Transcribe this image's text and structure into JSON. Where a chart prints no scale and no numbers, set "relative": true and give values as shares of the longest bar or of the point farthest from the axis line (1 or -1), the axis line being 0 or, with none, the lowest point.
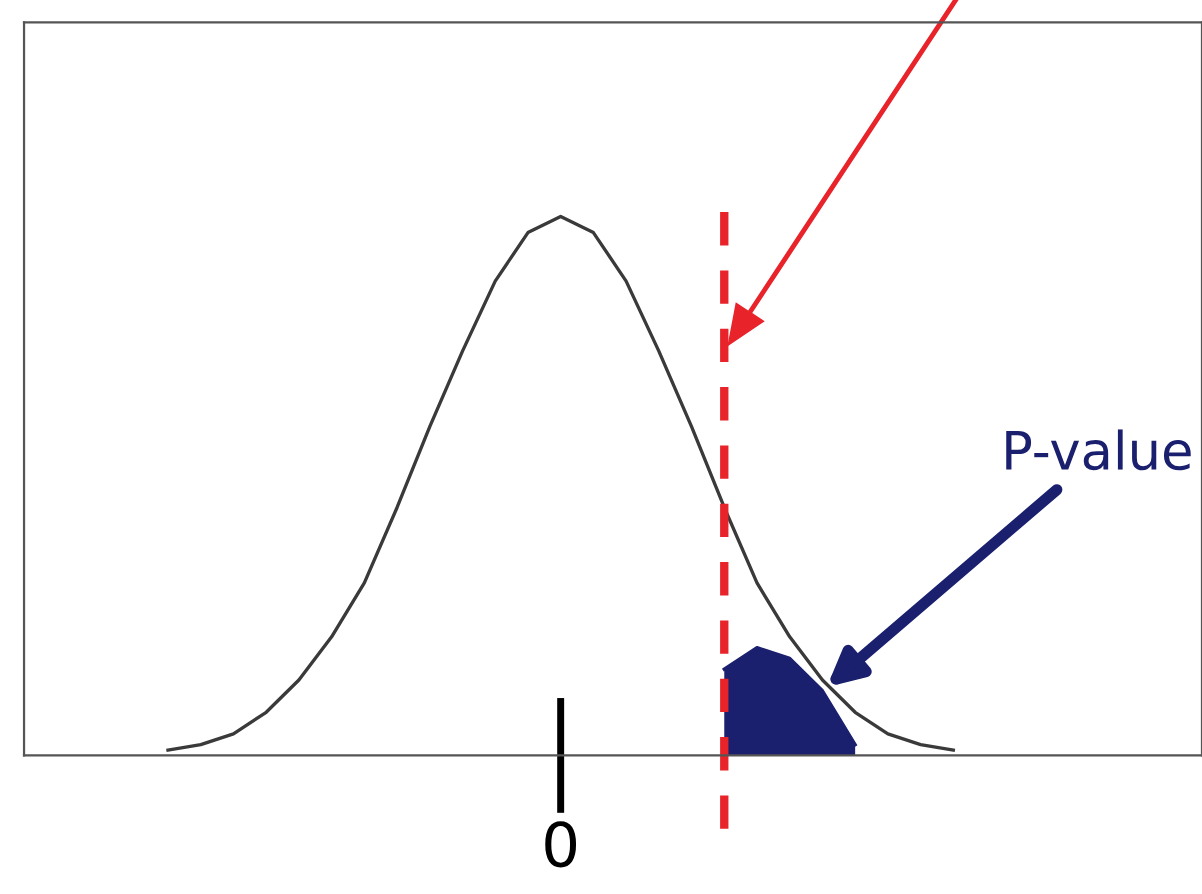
{
  "chart_data": {
    "type": "line",
    "relative": true,
    "categories": [
      null,
      null,
      null,
      null,
      null,
      null,
      null,
      null,
      null,
      null,
      null,
      null,
      null,
      null,
      null,
      null,
      null,
      null,
      null,
      null,
      null,
      null,
      null,
      null,
      null
    ],
    "series": [
      {
        "color": "#3a3a3a",
        "values": [
          0.01,
          0.02,
          0.04,
          0.08,
          0.14,
          0.22,
          0.32,
          0.46,
          0.61,
          0.75,
          0.88,
          0.97,
          1,
          0.97,
          0.88,
          0.75,
          0.61,
          0.46,
          0.32,
          0.22,
          0.14,
          0.08,
          0.04,
          0.02,
          0.01
        ]
      },
      {
        "type": "area",
        "name": "P-value",
        "color": "#1a1f6e",
        "values": [
          null,
          null,
          null,
          null,
          null,
          null,
          null,
          null,
          null,
          null,
          null,
          null,
          null,
          null,
          null,
          null,
          null,
          0.16,
          0.2,
          0.18,
          0.12,
          0.02,
          null,
          null,
          null
        ]
      }
    ],
    "annotations": [
      "0"
    ]
  }
}
